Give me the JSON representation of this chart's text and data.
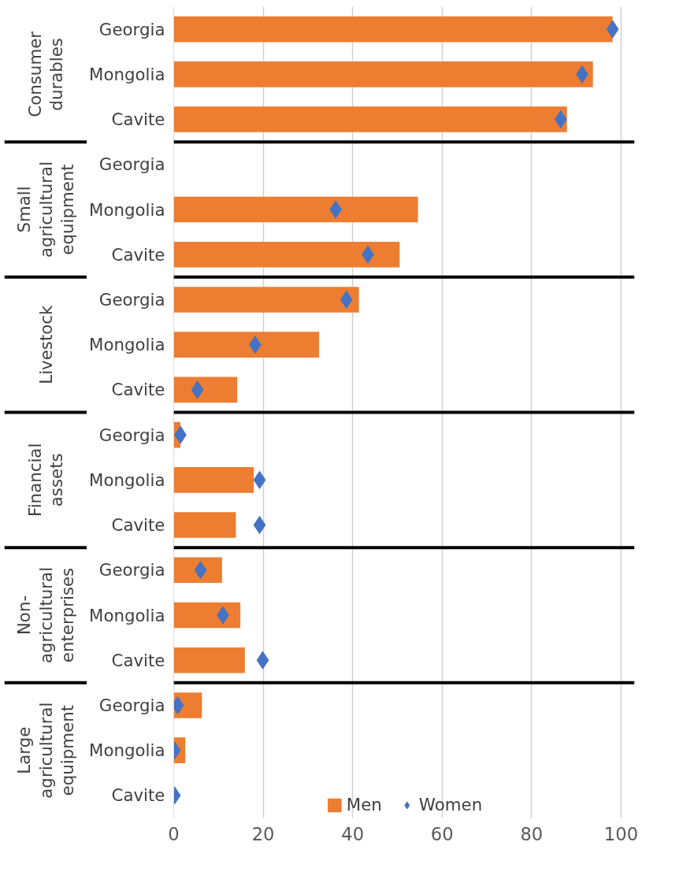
{
  "chart_data": {
    "type": "bar",
    "orientation": "horizontal",
    "categories": [
      "Georgia",
      "Mongolia",
      "Cavite",
      "Georgia",
      "Mongolia",
      "Cavite",
      "Georgia",
      "Mongolia",
      "Cavite",
      "Georgia",
      "Mongolia",
      "Cavite",
      "Georgia",
      "Mongolia",
      "Cavite",
      "Georgia",
      "Mongolia",
      "Cavite"
    ],
    "series": [
      {
        "name": "Men",
        "color": "#ed7d31",
        "values": [
          98.1,
          93.7,
          87.9,
          null,
          54.6,
          50.5,
          41.4,
          32.5,
          14.2,
          1.5,
          17.9,
          13.9,
          10.8,
          14.9,
          15.9,
          6.3,
          2.6,
          0
        ]
      },
      {
        "name": "Women",
        "type": "scatter",
        "color": "#4472c4",
        "values": [
          98.1,
          91.3,
          86.5,
          null,
          36.2,
          43.4,
          38.6,
          18.2,
          5.3,
          1.5,
          19.2,
          19.2,
          6.0,
          11.0,
          19.9,
          0.9,
          0.2,
          0.2
        ]
      }
    ],
    "xlim": [
      0,
      103
    ],
    "xticks": [
      0,
      20,
      40,
      60,
      80,
      100
    ],
    "grid": "x",
    "legend": "bottom",
    "marker": "diamond",
    "annotations": [
      "Consumer durables",
      "Small agricultural equipment",
      "Livestock",
      "Financial assets",
      "Non-agricultural enterprises",
      "Large agricultural equipment"
    ]
  }
}
